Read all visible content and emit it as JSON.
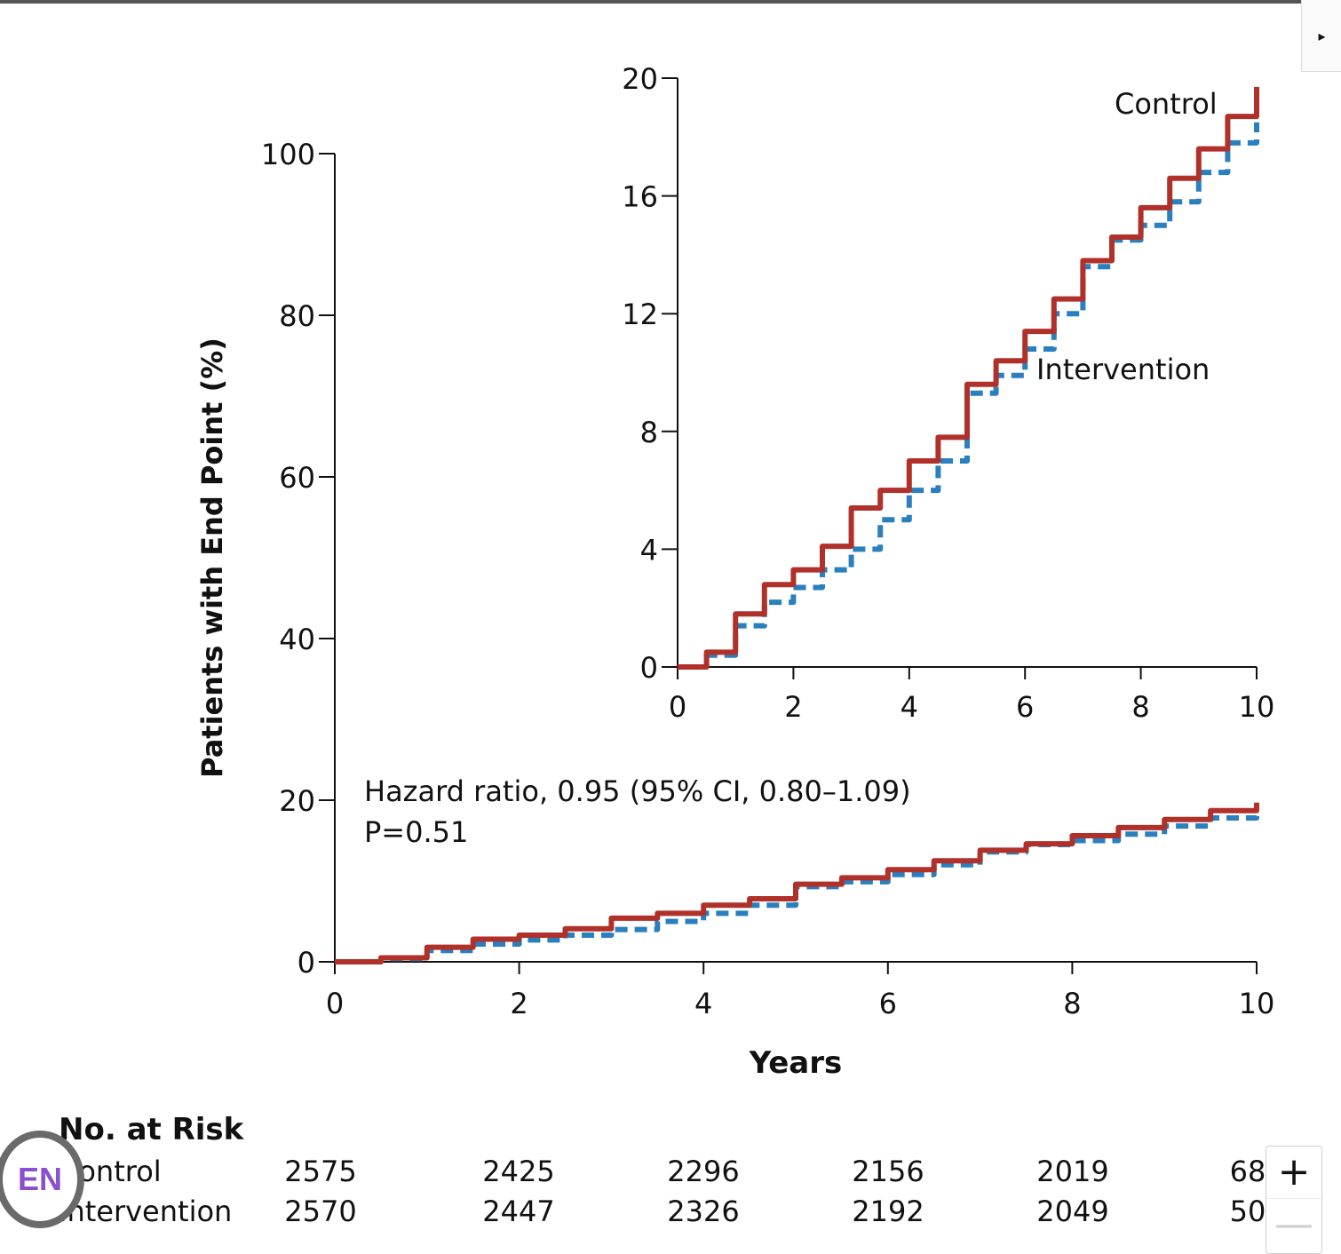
{
  "chart_data": [
    {
      "type": "line",
      "title": "",
      "xlabel": "Years",
      "ylabel": "Patients with End Point (%)",
      "xlim": [
        0,
        10
      ],
      "ylim": [
        0,
        100
      ],
      "x_ticks": [
        "0",
        "2",
        "4",
        "6",
        "8",
        "10"
      ],
      "y_ticks": [
        "0",
        "20",
        "40",
        "60",
        "80",
        "100"
      ],
      "grid": false,
      "annotations": [
        "Hazard ratio, 0.95 (95% CI, 0.80–1.09)",
        "P=0.51"
      ],
      "x": [
        0,
        0.5,
        1,
        1.5,
        2,
        2.5,
        3,
        3.5,
        4,
        4.5,
        5,
        5.5,
        6,
        6.5,
        7,
        7.5,
        8,
        8.5,
        9,
        9.5,
        10
      ],
      "series": [
        {
          "name": "Control",
          "color": "#b0312a",
          "style": "solid",
          "values": [
            0,
            0.5,
            1.8,
            2.8,
            3.3,
            4.1,
            5.4,
            6.0,
            7.0,
            7.8,
            9.6,
            10.4,
            11.4,
            12.5,
            13.8,
            14.6,
            15.6,
            16.6,
            17.6,
            18.7,
            19.7
          ]
        },
        {
          "name": "Intervention",
          "color": "#2a7fbf",
          "style": "dashed",
          "values": [
            0,
            0.4,
            1.4,
            2.2,
            2.7,
            3.3,
            4.0,
            5.0,
            6.0,
            7.0,
            9.3,
            9.9,
            10.8,
            12.0,
            13.6,
            14.5,
            15.0,
            15.8,
            16.8,
            17.8,
            18.5
          ]
        }
      ],
      "risk_table": {
        "title": "No. at Risk",
        "rows": [
          {
            "label": "Control",
            "values": [
              "2575",
              "2425",
              "2296",
              "2156",
              "2019",
              "68"
            ]
          },
          {
            "label": "Intervention",
            "values": [
              "2570",
              "2447",
              "2326",
              "2192",
              "2049",
              "50"
            ]
          }
        ]
      }
    },
    {
      "type": "line",
      "title": "",
      "xlabel": "",
      "ylabel": "",
      "xlim": [
        0,
        10
      ],
      "ylim": [
        0,
        20
      ],
      "x_ticks": [
        "0",
        "2",
        "4",
        "6",
        "8",
        "10"
      ],
      "y_ticks": [
        "0",
        "4",
        "8",
        "12",
        "16",
        "20"
      ],
      "grid": false,
      "series_labels": [
        "Control",
        "Intervention"
      ]
    }
  ],
  "ui": {
    "side_tab_icon": "▸",
    "lang_badge": "EN",
    "zoom_in": "+",
    "zoom_out": "—"
  }
}
